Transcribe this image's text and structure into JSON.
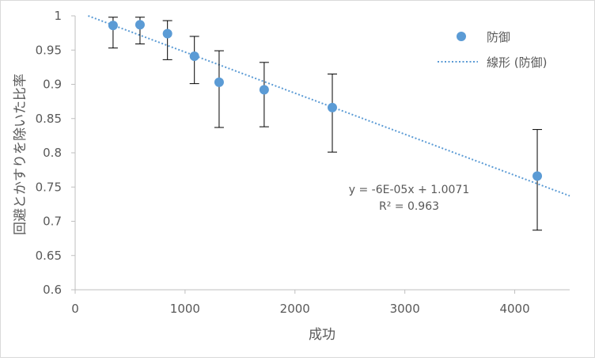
{
  "chart_data": {
    "type": "scatter",
    "title": "",
    "xlabel": "成功",
    "ylabel": "回避とかすりを除いた比率",
    "xlim": [
      0,
      4500
    ],
    "ylim": [
      0.6,
      1.0
    ],
    "x_ticks": [
      "0",
      "1000",
      "2000",
      "3000",
      "4000"
    ],
    "y_ticks": [
      "0.6",
      "0.65",
      "0.7",
      "0.75",
      "0.8",
      "0.85",
      "0.9",
      "0.95",
      "1"
    ],
    "grid": false,
    "legend_position": "top-right",
    "series": [
      {
        "name": "防御",
        "color": "#5b9bd5",
        "points": [
          {
            "x": 345,
            "y": 0.986,
            "err_low": 0.953,
            "err_high": 0.998
          },
          {
            "x": 590,
            "y": 0.987,
            "err_low": 0.959,
            "err_high": 0.998
          },
          {
            "x": 840,
            "y": 0.974,
            "err_low": 0.936,
            "err_high": 0.993
          },
          {
            "x": 1085,
            "y": 0.941,
            "err_low": 0.901,
            "err_high": 0.97
          },
          {
            "x": 1310,
            "y": 0.903,
            "err_low": 0.837,
            "err_high": 0.949
          },
          {
            "x": 1720,
            "y": 0.892,
            "err_low": 0.838,
            "err_high": 0.932
          },
          {
            "x": 2340,
            "y": 0.866,
            "err_low": 0.801,
            "err_high": 0.915
          },
          {
            "x": 4205,
            "y": 0.766,
            "err_low": 0.687,
            "err_high": 0.834
          }
        ]
      }
    ],
    "trendline": {
      "name": "線形 (防御)",
      "color": "#5b9bd5",
      "slope": -6e-05,
      "intercept": 1.0071,
      "equation": "y = -6E-05x + 1.0071",
      "r2": "R² = 0.963"
    }
  }
}
